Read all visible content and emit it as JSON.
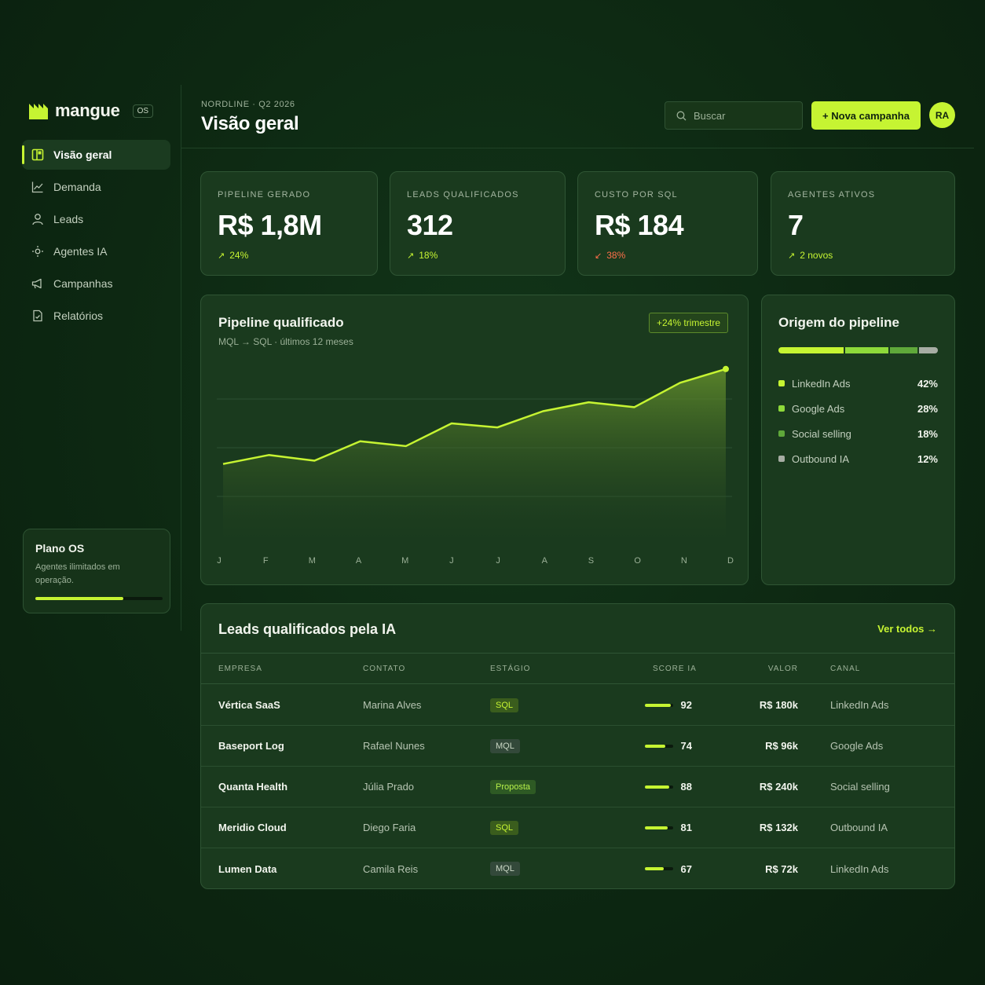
{
  "brand": {
    "name": "mangue",
    "badge": "OS"
  },
  "sidebar": {
    "items": [
      {
        "label": "Visão geral",
        "icon": "layout-icon",
        "active": true
      },
      {
        "label": "Demanda",
        "icon": "trend-icon",
        "active": false
      },
      {
        "label": "Leads",
        "icon": "user-icon",
        "active": false
      },
      {
        "label": "Agentes IA",
        "icon": "bulb-icon",
        "active": false
      },
      {
        "label": "Campanhas",
        "icon": "megaphone-icon",
        "active": false
      },
      {
        "label": "Relatórios",
        "icon": "document-icon",
        "active": false
      }
    ],
    "plan": {
      "title": "Plano OS",
      "description": "Agentes ilimitados em operação.",
      "progress": 0.69
    }
  },
  "header": {
    "eyebrow": "NORDLINE · Q2 2026",
    "title": "Visão geral",
    "search_placeholder": "Buscar",
    "cta_label": "+ Nova campanha",
    "avatar_initials": "RA"
  },
  "kpis": [
    {
      "label": "PIPELINE GERADO",
      "value": "R$ 1,8M",
      "delta": "24%",
      "direction": "up"
    },
    {
      "label": "LEADS QUALIFICADOS",
      "value": "312",
      "delta": "18%",
      "direction": "up"
    },
    {
      "label": "CUSTO POR SQL",
      "value": "R$ 184",
      "delta": "38%",
      "direction": "down"
    },
    {
      "label": "AGENTES ATIVOS",
      "value": "7",
      "delta": "2 novos",
      "direction": "up"
    }
  ],
  "pipeline_chart": {
    "title": "Pipeline qualificado",
    "subtitle": "MQL → SQL · últimos 12 meses",
    "badge": "+24% trimestre"
  },
  "chart_data": {
    "type": "area",
    "title": "Pipeline qualificado",
    "subtitle": "MQL → SQL · últimos 12 meses",
    "categories": [
      "J",
      "F",
      "M",
      "A",
      "M",
      "J",
      "J",
      "A",
      "S",
      "O",
      "N",
      "D"
    ],
    "values": [
      100,
      111,
      104,
      128,
      122,
      150,
      145,
      165,
      176,
      170,
      200,
      217
    ],
    "ylim": [
      0,
      240
    ],
    "grid": true,
    "accent": "#c6f432"
  },
  "origin": {
    "title": "Origem do pipeline",
    "items": [
      {
        "name": "LinkedIn Ads",
        "pct": "42%",
        "share": 42,
        "color": "#c6f432"
      },
      {
        "name": "Google Ads",
        "pct": "28%",
        "share": 28,
        "color": "#8ed93a"
      },
      {
        "name": "Social selling",
        "pct": "18%",
        "share": 18,
        "color": "#5fa83a"
      },
      {
        "name": "Outbound IA",
        "pct": "12%",
        "share": 12,
        "color": "#a7ada4"
      }
    ]
  },
  "leads_table": {
    "title": "Leads qualificados pela IA",
    "link": "Ver todos →",
    "columns": [
      "EMPRESA",
      "CONTATO",
      "ESTÁGIO",
      "SCORE IA",
      "VALOR",
      "CANAL"
    ],
    "rows": [
      {
        "company": "Vértica SaaS",
        "contact": "Marina Alves",
        "stage": "SQL",
        "stage_kind": "sql",
        "score": 92,
        "value": "R$ 180k",
        "channel": "LinkedIn Ads"
      },
      {
        "company": "Baseport Log",
        "contact": "Rafael Nunes",
        "stage": "MQL",
        "stage_kind": "mql",
        "score": 74,
        "value": "R$ 96k",
        "channel": "Google Ads"
      },
      {
        "company": "Quanta Health",
        "contact": "Júlia Prado",
        "stage": "Proposta",
        "stage_kind": "prop",
        "score": 88,
        "value": "R$ 240k",
        "channel": "Social selling"
      },
      {
        "company": "Meridio Cloud",
        "contact": "Diego Faria",
        "stage": "SQL",
        "stage_kind": "sql",
        "score": 81,
        "value": "R$ 132k",
        "channel": "Outbound IA"
      },
      {
        "company": "Lumen Data",
        "contact": "Camila Reis",
        "stage": "MQL",
        "stage_kind": "mql",
        "score": 67,
        "value": "R$ 72k",
        "channel": "LinkedIn Ads"
      }
    ]
  }
}
